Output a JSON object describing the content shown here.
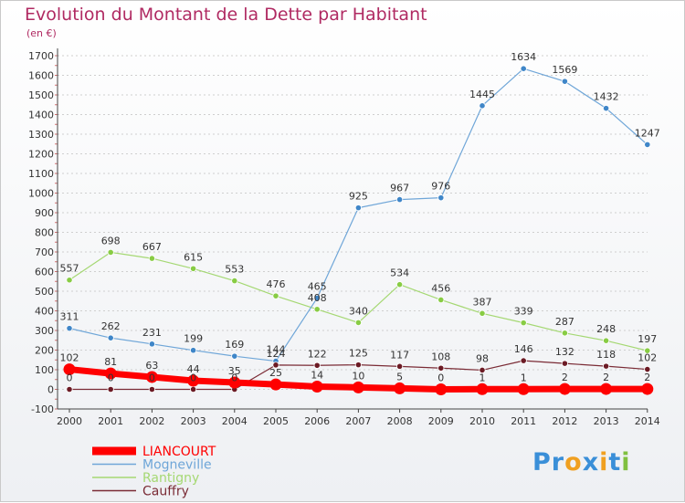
{
  "title": "Evolution du Montant de la Dette par Habitant",
  "subtitle": "(en €)",
  "logo": [
    "P",
    "r",
    "o",
    "x",
    "i",
    "t",
    "i"
  ],
  "colors": {
    "title": "#b02a62",
    "logo": [
      "#3a8fd8",
      "#3a8fd8",
      "#f0a020",
      "#3a8fd8",
      "#f0a020",
      "#3a8fd8",
      "#80c040"
    ]
  },
  "chart_data": {
    "type": "line",
    "x": [
      "2000",
      "2001",
      "2002",
      "2003",
      "2004",
      "2005",
      "2006",
      "2007",
      "2008",
      "2009",
      "2010",
      "2011",
      "2012",
      "2013",
      "2014"
    ],
    "ylim": [
      -100,
      1700
    ],
    "yticks": [
      -100,
      0,
      100,
      200,
      300,
      400,
      500,
      600,
      700,
      800,
      900,
      1000,
      1100,
      1200,
      1300,
      1400,
      1500,
      1600,
      1700
    ],
    "grid": true,
    "legend_position": "bottom-left",
    "series": [
      {
        "name": "Rantigny",
        "color": "#88cc44",
        "line": "#a5d873",
        "width": 1.2,
        "marker": 3.2,
        "values": [
          557,
          698,
          667,
          615,
          553,
          476,
          408,
          340,
          534,
          456,
          387,
          339,
          287,
          248,
          197
        ]
      },
      {
        "name": "Mogneville",
        "color": "#3f86c8",
        "line": "#6fa6d8",
        "width": 1.2,
        "marker": 3.2,
        "values": [
          311,
          262,
          231,
          199,
          169,
          144,
          465,
          925,
          967,
          976,
          1445,
          1634,
          1569,
          1432,
          1247
        ]
      },
      {
        "name": "Cauffry",
        "color": "#6b1a24",
        "line": "#7a2b35",
        "width": 1.2,
        "marker": 3.2,
        "values": [
          0,
          0,
          0,
          0,
          0,
          124,
          122,
          125,
          117,
          108,
          98,
          146,
          132,
          118,
          102
        ]
      },
      {
        "name": "LIANCOURT",
        "color": "#ff0000",
        "line": "#ff0000",
        "width": 7,
        "marker": 6.5,
        "values": [
          102,
          81,
          63,
          44,
          35,
          25,
          14,
          10,
          5,
          0,
          1,
          1,
          2,
          2,
          2
        ]
      }
    ],
    "legend": [
      {
        "name": "LIANCOURT",
        "color": "#ff0000",
        "thick": true
      },
      {
        "name": "Mogneville",
        "color": "#6fa6d8",
        "thick": false
      },
      {
        "name": "Rantigny",
        "color": "#a5d873",
        "thick": false
      },
      {
        "name": "Cauffry",
        "color": "#7a2b35",
        "thick": false
      }
    ]
  }
}
